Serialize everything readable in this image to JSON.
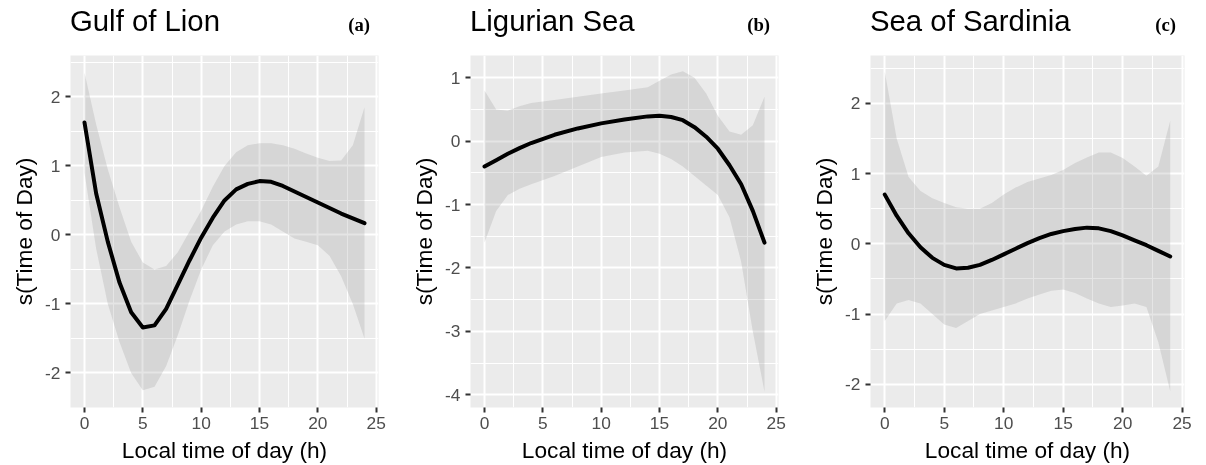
{
  "chart_data": [
    {
      "type": "line",
      "title": "Gulf of Lion",
      "annotations": [
        "(a)"
      ],
      "xlabel": "Local time of day (h)",
      "ylabel": "s(Time of Day)",
      "x": [
        0,
        1,
        2,
        3,
        4,
        5,
        6,
        7,
        8,
        9,
        10,
        11,
        12,
        13,
        14,
        15,
        16,
        17,
        18,
        19,
        20,
        21,
        22,
        23,
        24
      ],
      "series": [
        {
          "color": "#000000",
          "values": [
            1.63,
            0.6,
            -0.1,
            -0.69,
            -1.12,
            -1.34,
            -1.31,
            -1.07,
            -0.72,
            -0.37,
            -0.04,
            0.25,
            0.5,
            0.66,
            0.74,
            0.78,
            0.77,
            0.71,
            0.63,
            0.55,
            0.47,
            0.39,
            0.31,
            0.24,
            0.17
          ],
          "upper": [
            2.35,
            1.6,
            0.95,
            0.4,
            -0.1,
            -0.4,
            -0.5,
            -0.45,
            -0.25,
            0.05,
            0.35,
            0.7,
            1.0,
            1.2,
            1.3,
            1.33,
            1.33,
            1.3,
            1.25,
            1.18,
            1.12,
            1.07,
            1.08,
            1.3,
            1.85
          ],
          "lower": [
            0.9,
            -0.2,
            -1.0,
            -1.55,
            -2.0,
            -2.25,
            -2.2,
            -1.9,
            -1.45,
            -0.95,
            -0.5,
            -0.15,
            0.05,
            0.15,
            0.2,
            0.2,
            0.15,
            0.05,
            -0.05,
            -0.1,
            -0.15,
            -0.3,
            -0.6,
            -1.0,
            -1.5
          ]
        }
      ],
      "xlim": [
        -1.2,
        25.2
      ],
      "ylim": [
        -2.5,
        2.6
      ],
      "xticks": [
        0,
        5,
        10,
        15,
        20,
        25
      ],
      "yticks": [
        -2,
        -1,
        0,
        1,
        2
      ],
      "grid": true
    },
    {
      "type": "line",
      "title": "Ligurian Sea",
      "annotations": [
        "(b)"
      ],
      "xlabel": "Local time of day (h)",
      "ylabel": "s(Time of Day)",
      "x": [
        0,
        1,
        2,
        3,
        4,
        6,
        8,
        10,
        12,
        14,
        15,
        16,
        17,
        18,
        19,
        20,
        21,
        22,
        23,
        24
      ],
      "series": [
        {
          "color": "#000000",
          "values": [
            -0.4,
            -0.3,
            -0.2,
            -0.11,
            -0.03,
            0.1,
            0.2,
            0.28,
            0.34,
            0.39,
            0.4,
            0.38,
            0.33,
            0.22,
            0.07,
            -0.12,
            -0.38,
            -0.68,
            -1.1,
            -1.6
          ],
          "upper": [
            0.8,
            0.5,
            0.48,
            0.55,
            0.6,
            0.65,
            0.7,
            0.75,
            0.8,
            0.85,
            0.95,
            1.05,
            1.1,
            1.0,
            0.75,
            0.4,
            0.15,
            0.1,
            0.25,
            0.7
          ],
          "lower": [
            -1.6,
            -1.1,
            -0.85,
            -0.75,
            -0.68,
            -0.55,
            -0.4,
            -0.25,
            -0.18,
            -0.15,
            -0.2,
            -0.28,
            -0.4,
            -0.55,
            -0.7,
            -0.85,
            -1.2,
            -1.9,
            -3.0,
            -3.95
          ]
        }
      ],
      "xlim": [
        -1.2,
        25.2
      ],
      "ylim": [
        -4.2,
        1.35
      ],
      "xticks": [
        0,
        5,
        10,
        15,
        20,
        25
      ],
      "yticks": [
        -4,
        -3,
        -2,
        -1,
        0,
        1
      ],
      "grid": true
    },
    {
      "type": "line",
      "title": "Sea of Sardinia",
      "annotations": [
        "(c)"
      ],
      "xlabel": "Local time of day (h)",
      "ylabel": "s(Time of Day)",
      "x": [
        0,
        1,
        2,
        3,
        4,
        5,
        6,
        7,
        8,
        9,
        10,
        11,
        12,
        13,
        14,
        15,
        16,
        17,
        18,
        19,
        20,
        21,
        22,
        23,
        24
      ],
      "series": [
        {
          "color": "#000000",
          "values": [
            0.7,
            0.4,
            0.15,
            -0.05,
            -0.2,
            -0.3,
            -0.35,
            -0.34,
            -0.3,
            -0.23,
            -0.15,
            -0.07,
            0.01,
            0.08,
            0.14,
            0.18,
            0.21,
            0.23,
            0.22,
            0.18,
            0.12,
            0.05,
            -0.02,
            -0.1,
            -0.18
          ],
          "upper": [
            2.45,
            1.5,
            0.95,
            0.75,
            0.65,
            0.58,
            0.52,
            0.5,
            0.5,
            0.58,
            0.7,
            0.8,
            0.88,
            0.93,
            0.98,
            1.05,
            1.15,
            1.23,
            1.3,
            1.3,
            1.22,
            1.1,
            0.97,
            1.1,
            1.75
          ],
          "lower": [
            -1.1,
            -0.85,
            -0.8,
            -0.85,
            -1.0,
            -1.15,
            -1.2,
            -1.1,
            -1.0,
            -0.95,
            -0.9,
            -0.85,
            -0.78,
            -0.72,
            -0.67,
            -0.65,
            -0.7,
            -0.78,
            -0.85,
            -0.9,
            -0.88,
            -0.85,
            -0.9,
            -1.4,
            -2.1
          ]
        }
      ],
      "xlim": [
        -1.2,
        25.2
      ],
      "ylim": [
        -2.33,
        2.68
      ],
      "xticks": [
        0,
        5,
        10,
        15,
        20,
        25
      ],
      "yticks": [
        -2,
        -1,
        0,
        1,
        2
      ],
      "grid": true
    }
  ]
}
